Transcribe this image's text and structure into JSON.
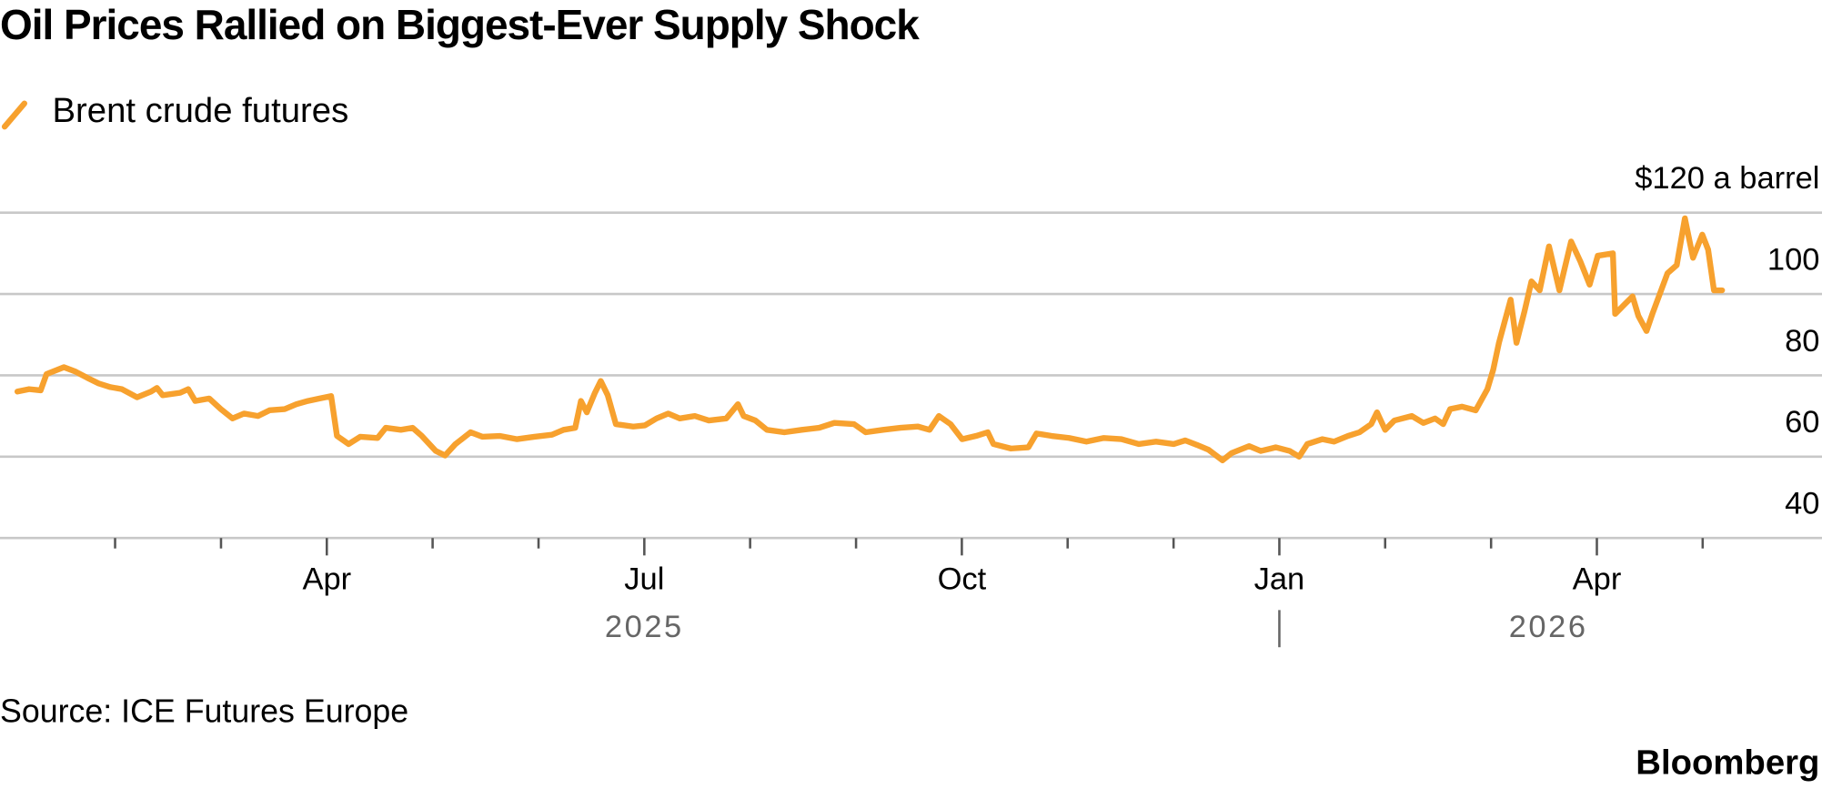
{
  "chart_data": {
    "type": "line",
    "title": "Oil Prices Rallied on Biggest-Ever Supply Shock",
    "source": "Source: ICE Futures Europe",
    "logo": "Bloomberg",
    "x": [
      2025.0064,
      2025.0156,
      2025.0247,
      2025.0293,
      2025.043,
      2025.0522,
      2025.0613,
      2025.0704,
      2025.0796,
      2025.0887,
      2025.1006,
      2025.1116,
      2025.1162,
      2025.1208,
      2025.1345,
      2025.1409,
      2025.1464,
      2025.1574,
      2025.1665,
      2025.1757,
      2025.1848,
      2025.1958,
      2025.2049,
      2025.2168,
      2025.226,
      2025.2351,
      2025.2443,
      2025.2534,
      2025.258,
      2025.2672,
      2025.2763,
      2025.29,
      2025.2964,
      2025.3083,
      2025.3175,
      2025.3248,
      2025.3358,
      2025.3431,
      2025.3513,
      2025.3632,
      2025.3724,
      2025.3861,
      2025.3998,
      2025.4135,
      2025.4273,
      2025.4364,
      2025.4456,
      2025.4501,
      2025.4547,
      2025.4611,
      2025.4657,
      2025.4712,
      2025.4776,
      2025.4913,
      2025.5005,
      2025.5096,
      2025.5188,
      2025.5279,
      2025.5398,
      2025.5508,
      2025.5645,
      2025.5737,
      2025.5782,
      2025.5874,
      2025.5965,
      2025.6102,
      2025.624,
      2025.6377,
      2025.6496,
      2025.6651,
      2025.6743,
      2025.688,
      2025.7017,
      2025.7155,
      2025.7246,
      2025.7319,
      2025.7411,
      2025.7502,
      2025.7612,
      2025.7704,
      2025.7749,
      2025.7887,
      2025.8024,
      2025.8088,
      2025.8207,
      2025.8344,
      2025.8481,
      2025.8618,
      2025.8756,
      2025.8893,
      2025.903,
      2025.9168,
      2025.9259,
      2025.935,
      2025.9442,
      2025.9552,
      2025.9625,
      2025.9762,
      2025.9854,
      2025.9973,
      2026.0082,
      2026.0156,
      2026.022,
      2026.0339,
      2026.043,
      2026.054,
      2026.0631,
      2026.0723,
      2026.0769,
      2026.0833,
      2026.0906,
      2026.1043,
      2026.1134,
      2026.1226,
      2026.129,
      2026.1345,
      2026.1437,
      2026.1546,
      2026.1638,
      2026.1684,
      2026.1729,
      2026.1821,
      2026.1867,
      2026.193,
      2026.1985,
      2026.205,
      2026.2123,
      2026.2205,
      2026.2297,
      2026.237,
      2026.2443,
      2026.2507,
      2026.2626,
      2026.2644,
      2026.2717,
      2026.2781,
      2026.2827,
      2026.2891,
      2026.2937,
      2026.3056,
      2026.3129,
      2026.3193,
      2026.3257,
      2026.333,
      2026.3376,
      2026.3422,
      2026.3486
    ],
    "series": [
      {
        "name": "Brent crude futures",
        "color": "#f7a12e",
        "values": [
          76.0,
          76.6,
          76.3,
          80.3,
          82.0,
          80.9,
          79.4,
          78.0,
          77.1,
          76.6,
          74.6,
          76.0,
          76.9,
          75.1,
          75.7,
          76.6,
          73.7,
          74.3,
          71.7,
          69.4,
          70.6,
          70.0,
          71.4,
          71.7,
          72.9,
          73.7,
          74.3,
          74.9,
          65.1,
          63.1,
          64.9,
          64.6,
          67.1,
          66.6,
          67.1,
          65.1,
          61.4,
          60.3,
          63.1,
          66.0,
          64.9,
          65.1,
          64.3,
          64.9,
          65.4,
          66.6,
          67.1,
          73.7,
          70.9,
          75.7,
          78.6,
          75.1,
          68.0,
          67.4,
          67.7,
          69.4,
          70.6,
          69.4,
          70.0,
          68.9,
          69.4,
          72.9,
          70.0,
          68.9,
          66.6,
          66.0,
          66.6,
          67.1,
          68.3,
          68.0,
          66.0,
          66.6,
          67.1,
          67.4,
          66.6,
          70.0,
          68.0,
          64.3,
          65.1,
          66.0,
          63.1,
          62.0,
          62.3,
          65.7,
          65.1,
          64.6,
          63.7,
          64.6,
          64.3,
          63.1,
          63.7,
          63.1,
          64.0,
          62.9,
          61.7,
          59.1,
          60.9,
          62.6,
          61.4,
          62.3,
          61.4,
          60.0,
          63.1,
          64.3,
          63.7,
          65.1,
          66.0,
          68.0,
          70.9,
          66.6,
          68.9,
          70.0,
          68.3,
          69.4,
          68.0,
          71.7,
          72.3,
          71.4,
          76.6,
          81.4,
          88.0,
          98.6,
          88.0,
          95.7,
          103.1,
          100.9,
          111.7,
          100.9,
          112.9,
          108.0,
          102.3,
          109.4,
          110.0,
          95.1,
          97.4,
          99.4,
          94.6,
          90.9,
          95.1,
          105.1,
          107.1,
          118.6,
          108.9,
          114.6,
          110.9,
          100.9,
          100.9
        ]
      }
    ],
    "xlim": [
      2025,
      2026.4236
    ],
    "xticks": [
      {
        "value": 2025.25,
        "label": "Apr"
      },
      {
        "value": 2025.5,
        "label": "Jul"
      },
      {
        "value": 2025.75,
        "label": "Oct"
      },
      {
        "value": 2026,
        "label": "Jan"
      },
      {
        "value": 2026.25,
        "label": "Apr"
      }
    ],
    "xminorticks": [
      2025.0833,
      2025.1667,
      2025.3333,
      2025.4167,
      2025.5833,
      2025.6667,
      2025.8333,
      2025.9167,
      2026.0833,
      2026.1667,
      2026.3333
    ],
    "years": [
      2025,
      2026
    ],
    "ylim": [
      40,
      120
    ],
    "yticks": [
      40,
      60,
      80,
      100,
      {
        "value": 120,
        "label": "$120 a barrel"
      }
    ],
    "grid": true
  }
}
